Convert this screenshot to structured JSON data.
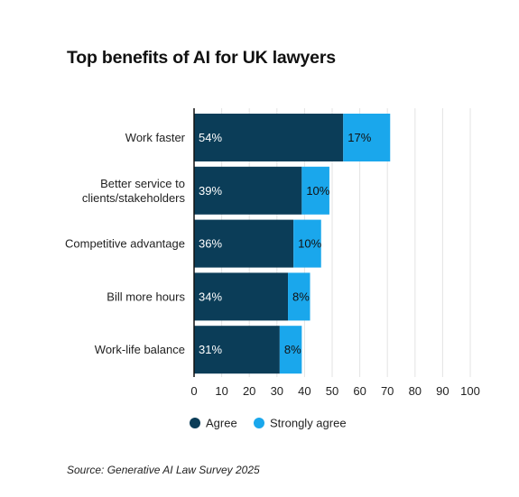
{
  "title": "Top benefits of AI for UK lawyers",
  "source": "Source: Generative AI Law Survey 2025",
  "chart_data": {
    "type": "bar",
    "orientation": "horizontal",
    "stacked": true,
    "categories": [
      "Work faster",
      [
        "Better service to",
        "clients/stakeholders"
      ],
      "Competitive advantage",
      "Bill more hours",
      "Work-life balance"
    ],
    "series": [
      {
        "name": "Agree",
        "values": [
          54,
          39,
          36,
          34,
          31
        ],
        "labels": [
          "54%",
          "39%",
          "36%",
          "34%",
          "31%"
        ],
        "color": "#0b3d58",
        "label_color": "#ffffff"
      },
      {
        "name": "Strongly agree",
        "values": [
          17,
          10,
          10,
          8,
          8
        ],
        "labels": [
          "17%",
          "10%",
          "10%",
          "8%",
          "8%"
        ],
        "color": "#1aa7ec",
        "label_color": "#111111"
      }
    ],
    "xlim": [
      0,
      100
    ],
    "xticks": [
      "0",
      "10",
      "20",
      "30",
      "40",
      "50",
      "60",
      "70",
      "80",
      "90",
      "100"
    ],
    "grid": true,
    "legend": "bottom"
  }
}
